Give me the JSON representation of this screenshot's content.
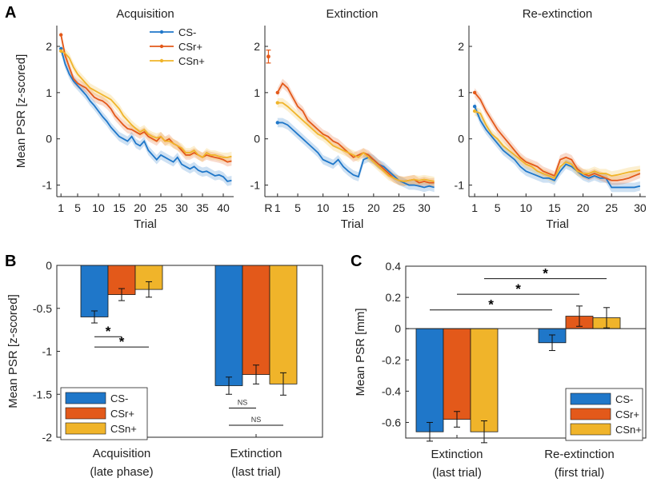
{
  "colors": {
    "cs_minus": "#1f77c9",
    "csr_plus": "#e3591a",
    "csn_plus": "#f0b42a",
    "axis": "#262626"
  },
  "panel_labels": {
    "a": "A",
    "b": "B",
    "c": "C"
  },
  "chart_data": [
    {
      "type": "line",
      "title": "Acquisition",
      "xlabel": "Trial",
      "ylabel": "Mean PSR [z-scored]",
      "xlim": [
        0,
        42.5
      ],
      "ylim": [
        -1.25,
        2.45
      ],
      "xticks": [
        1,
        5,
        10,
        15,
        20,
        25,
        30,
        35,
        40
      ],
      "yticks": [
        2,
        1,
        0,
        -1
      ],
      "legend": [
        "CS-",
        "CSr+",
        "CSn+"
      ],
      "legend_position": "top-right",
      "x": [
        1,
        2,
        3,
        4,
        5,
        6,
        7,
        8,
        9,
        10,
        11,
        12,
        13,
        14,
        15,
        16,
        17,
        18,
        19,
        20,
        21,
        22,
        23,
        24,
        25,
        26,
        27,
        28,
        29,
        30,
        31,
        32,
        33,
        34,
        35,
        36,
        37,
        38,
        39,
        40,
        41,
        42
      ],
      "series": [
        {
          "name": "CS-",
          "color": "#1f77c9",
          "values": [
            1.95,
            1.62,
            1.4,
            1.25,
            1.15,
            1.05,
            0.95,
            0.82,
            0.72,
            0.6,
            0.48,
            0.38,
            0.25,
            0.15,
            0.05,
            0.0,
            -0.05,
            0.05,
            -0.1,
            -0.15,
            -0.05,
            -0.25,
            -0.35,
            -0.45,
            -0.35,
            -0.4,
            -0.45,
            -0.5,
            -0.4,
            -0.55,
            -0.6,
            -0.65,
            -0.6,
            -0.68,
            -0.72,
            -0.7,
            -0.75,
            -0.8,
            -0.78,
            -0.82,
            -0.92,
            -0.9
          ]
        },
        {
          "name": "CSr+",
          "color": "#e3591a",
          "values": [
            2.25,
            1.8,
            1.55,
            1.3,
            1.2,
            1.15,
            1.1,
            1.0,
            0.9,
            0.85,
            0.82,
            0.75,
            0.65,
            0.5,
            0.4,
            0.3,
            0.22,
            0.2,
            0.15,
            0.1,
            0.15,
            0.05,
            0.0,
            -0.05,
            0.05,
            -0.05,
            0.0,
            -0.1,
            -0.15,
            -0.25,
            -0.35,
            -0.35,
            -0.3,
            -0.35,
            -0.4,
            -0.35,
            -0.38,
            -0.4,
            -0.42,
            -0.45,
            -0.5,
            -0.48
          ]
        },
        {
          "name": "CSn+",
          "color": "#f0b42a",
          "values": [
            1.9,
            1.85,
            1.75,
            1.55,
            1.4,
            1.3,
            1.2,
            1.1,
            1.05,
            1.0,
            0.95,
            0.9,
            0.85,
            0.75,
            0.65,
            0.5,
            0.4,
            0.3,
            0.22,
            0.15,
            0.2,
            0.1,
            0.05,
            0.02,
            0.05,
            -0.05,
            -0.05,
            -0.1,
            -0.15,
            -0.2,
            -0.3,
            -0.3,
            -0.25,
            -0.35,
            -0.4,
            -0.3,
            -0.35,
            -0.35,
            -0.38,
            -0.4,
            -0.4,
            -0.38
          ]
        }
      ]
    },
    {
      "type": "line",
      "title": "Extinction",
      "xlabel": "Trial",
      "ylabel": "",
      "xlim": [
        -1.5,
        33
      ],
      "ylim": [
        -1.25,
        2.45
      ],
      "xticks": [
        1,
        5,
        10,
        15,
        20,
        25,
        30
      ],
      "xtick_labels": [
        "1",
        "5",
        "10",
        "15",
        "20",
        "25",
        "30"
      ],
      "extra_xtick": {
        "x": -0.8,
        "label": "R"
      },
      "yticks": [
        2,
        1,
        0,
        -1
      ],
      "reference_point": {
        "x": -0.8,
        "y": 1.78,
        "err": 0.14,
        "color": "#e3591a"
      },
      "x": [
        1,
        2,
        3,
        4,
        5,
        6,
        7,
        8,
        9,
        10,
        11,
        12,
        13,
        14,
        15,
        16,
        17,
        18,
        19,
        20,
        21,
        22,
        23,
        24,
        25,
        26,
        27,
        28,
        29,
        30,
        31,
        32
      ],
      "series": [
        {
          "name": "CS-",
          "color": "#1f77c9",
          "values": [
            0.35,
            0.35,
            0.3,
            0.2,
            0.1,
            0.0,
            -0.1,
            -0.2,
            -0.3,
            -0.45,
            -0.5,
            -0.55,
            -0.45,
            -0.6,
            -0.7,
            -0.78,
            -0.82,
            -0.45,
            -0.4,
            -0.45,
            -0.55,
            -0.6,
            -0.7,
            -0.8,
            -0.9,
            -0.95,
            -1.0,
            -1.0,
            -1.02,
            -1.05,
            -1.02,
            -1.05
          ]
        },
        {
          "name": "CSr+",
          "color": "#e3591a",
          "values": [
            1.0,
            1.2,
            1.1,
            0.9,
            0.7,
            0.6,
            0.4,
            0.3,
            0.2,
            0.1,
            0.05,
            -0.05,
            -0.1,
            -0.2,
            -0.3,
            -0.4,
            -0.35,
            -0.3,
            -0.35,
            -0.45,
            -0.55,
            -0.65,
            -0.75,
            -0.85,
            -0.9,
            -0.92,
            -0.9,
            -0.88,
            -0.95,
            -0.92,
            -0.95,
            -0.95
          ]
        },
        {
          "name": "CSn+",
          "color": "#f0b42a",
          "values": [
            0.78,
            0.78,
            0.7,
            0.6,
            0.5,
            0.4,
            0.3,
            0.2,
            0.1,
            0.05,
            -0.05,
            -0.15,
            -0.2,
            -0.25,
            -0.3,
            -0.35,
            -0.4,
            -0.3,
            -0.4,
            -0.5,
            -0.6,
            -0.7,
            -0.8,
            -0.85,
            -0.9,
            -0.92,
            -0.9,
            -0.88,
            -0.9,
            -0.88,
            -0.9,
            -0.92
          ]
        }
      ]
    },
    {
      "type": "line",
      "title": "Re-extinction",
      "xlabel": "Trial",
      "ylabel": "",
      "xlim": [
        0,
        31
      ],
      "ylim": [
        -1.25,
        2.45
      ],
      "xticks": [
        1,
        5,
        10,
        15,
        20,
        25,
        30
      ],
      "yticks": [
        2,
        1,
        0,
        -1
      ],
      "x": [
        1,
        2,
        3,
        4,
        5,
        6,
        7,
        8,
        9,
        10,
        11,
        12,
        13,
        14,
        15,
        16,
        17,
        18,
        19,
        20,
        21,
        22,
        23,
        24,
        25,
        26,
        27,
        28,
        29,
        30
      ],
      "series": [
        {
          "name": "CS-",
          "color": "#1f77c9",
          "values": [
            0.7,
            0.4,
            0.2,
            0.05,
            -0.1,
            -0.25,
            -0.35,
            -0.45,
            -0.6,
            -0.7,
            -0.75,
            -0.8,
            -0.85,
            -0.85,
            -0.9,
            -0.7,
            -0.55,
            -0.6,
            -0.7,
            -0.8,
            -0.85,
            -0.8,
            -0.85,
            -0.85,
            -1.05,
            -1.05,
            -1.05,
            -1.05,
            -1.05,
            -1.02
          ]
        },
        {
          "name": "CSr+",
          "color": "#e3591a",
          "values": [
            1.0,
            0.85,
            0.6,
            0.4,
            0.2,
            0.05,
            -0.1,
            -0.25,
            -0.4,
            -0.5,
            -0.55,
            -0.6,
            -0.7,
            -0.75,
            -0.8,
            -0.45,
            -0.4,
            -0.45,
            -0.65,
            -0.75,
            -0.8,
            -0.75,
            -0.8,
            -0.85,
            -0.9,
            -0.9,
            -0.88,
            -0.85,
            -0.8,
            -0.75
          ]
        },
        {
          "name": "CSn+",
          "color": "#f0b42a",
          "values": [
            0.6,
            0.55,
            0.3,
            0.1,
            0.0,
            -0.15,
            -0.25,
            -0.35,
            -0.45,
            -0.55,
            -0.6,
            -0.7,
            -0.75,
            -0.8,
            -0.85,
            -0.6,
            -0.5,
            -0.55,
            -0.7,
            -0.75,
            -0.75,
            -0.7,
            -0.75,
            -0.75,
            -0.8,
            -0.78,
            -0.75,
            -0.72,
            -0.7,
            -0.68
          ]
        }
      ]
    },
    {
      "type": "bar",
      "title": "",
      "ylabel": "Mean PSR [z-scored]",
      "ylim": [
        -2,
        0
      ],
      "yticks": [
        0,
        -0.5,
        -1,
        -1.5,
        -2
      ],
      "ytick_labels": [
        "0",
        "-0.5",
        "-1",
        "-1.5",
        "-2"
      ],
      "categories": [
        "Acquisition",
        "Extinction"
      ],
      "category_sublabels": [
        "(late phase)",
        "(last trial)"
      ],
      "legend": [
        "CS-",
        "CSr+",
        "CSn+"
      ],
      "legend_position": "bottom-left",
      "series": [
        {
          "name": "CS-",
          "color": "#1f77c9",
          "values": [
            -0.6,
            -1.4
          ],
          "err": [
            0.07,
            0.1
          ]
        },
        {
          "name": "CSr+",
          "color": "#e3591a",
          "values": [
            -0.34,
            -1.27
          ],
          "err": [
            0.07,
            0.11
          ]
        },
        {
          "name": "CSn+",
          "color": "#f0b42a",
          "values": [
            -0.28,
            -1.38
          ],
          "err": [
            0.09,
            0.13
          ]
        }
      ],
      "annotations": [
        {
          "label": "*",
          "from": [
            0,
            0
          ],
          "to": [
            0,
            1
          ],
          "y": -0.83
        },
        {
          "label": "*",
          "from": [
            0,
            0
          ],
          "to": [
            0,
            2
          ],
          "y": -0.95
        },
        {
          "label": "NS",
          "from": [
            1,
            0
          ],
          "to": [
            1,
            1
          ],
          "y": -1.66
        },
        {
          "label": "NS",
          "from": [
            1,
            0
          ],
          "to": [
            1,
            2
          ],
          "y": -1.86
        }
      ]
    },
    {
      "type": "bar",
      "title": "",
      "ylabel": "Mean PSR [mm]",
      "ylim": [
        -0.7,
        0.4
      ],
      "yticks": [
        0.4,
        0.2,
        0,
        -0.2,
        -0.4,
        -0.6
      ],
      "ytick_labels": [
        "0.4",
        "0.2",
        "0",
        "-0.2",
        "-0.4",
        "-0.6"
      ],
      "categories": [
        "Extinction",
        "Re-extinction"
      ],
      "category_sublabels": [
        "(last trial)",
        "(first trial)"
      ],
      "legend": [
        "CS-",
        "CSr+",
        "CSn+"
      ],
      "legend_position": "bottom-right",
      "series": [
        {
          "name": "CS-",
          "color": "#1f77c9",
          "values": [
            -0.66,
            -0.09
          ],
          "err": [
            0.06,
            0.05
          ]
        },
        {
          "name": "CSr+",
          "color": "#e3591a",
          "values": [
            -0.58,
            0.08
          ],
          "err": [
            0.05,
            0.065
          ]
        },
        {
          "name": "CSn+",
          "color": "#f0b42a",
          "values": [
            -0.66,
            0.07
          ],
          "err": [
            0.07,
            0.065
          ]
        }
      ],
      "annotations": [
        {
          "label": "*",
          "from": [
            0,
            0
          ],
          "to": [
            1,
            0
          ],
          "y": 0.12
        },
        {
          "label": "*",
          "from": [
            0,
            1
          ],
          "to": [
            1,
            1
          ],
          "y": 0.22
        },
        {
          "label": "*",
          "from": [
            0,
            2
          ],
          "to": [
            1,
            2
          ],
          "y": 0.32
        }
      ]
    }
  ]
}
